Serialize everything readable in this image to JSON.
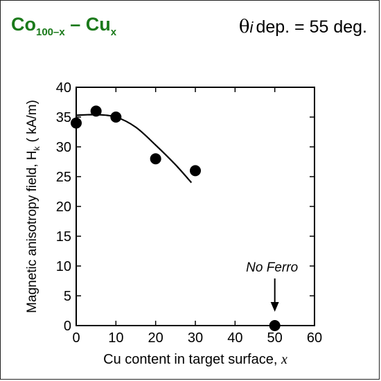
{
  "annotations": {
    "title_main": "Co",
    "title_sub1": "100–x",
    "title_dash": " – Cu",
    "title_sub2": "x",
    "condition_theta": "θ",
    "condition_i": "i",
    "condition_text": "dep. = 55 deg."
  },
  "colors": {
    "title": "#1b7a1b",
    "marks": "#000000"
  },
  "chart_data": {
    "type": "scatter",
    "xlabel": "Cu content in target surface, x",
    "ylabel_text": "Magnetic anisotropy field, H",
    "ylabel_sub": "k",
    "ylabel_unit": "( kA/m)",
    "xlim": [
      0,
      60
    ],
    "ylim": [
      0,
      40
    ],
    "xticks": [
      0,
      10,
      20,
      30,
      40,
      50,
      60
    ],
    "yticks": [
      0,
      5,
      10,
      15,
      20,
      25,
      30,
      35,
      40
    ],
    "grid": false,
    "series": [
      {
        "values": [
          {
            "x": 0,
            "y": 34
          },
          {
            "x": 5,
            "y": 36
          },
          {
            "x": 10,
            "y": 35
          },
          {
            "x": 20,
            "y": 28
          },
          {
            "x": 30,
            "y": 26
          },
          {
            "x": 50,
            "y": 0
          }
        ]
      }
    ],
    "trend_line": [
      {
        "x": 0,
        "y": 35.3
      },
      {
        "x": 5,
        "y": 35.4
      },
      {
        "x": 10,
        "y": 35
      },
      {
        "x": 15,
        "y": 33.3
      },
      {
        "x": 20,
        "y": 30.3
      },
      {
        "x": 25,
        "y": 27
      },
      {
        "x": 29,
        "y": 24
      }
    ],
    "annotation": {
      "text": "No Ferro",
      "x": 50,
      "y": 0
    }
  }
}
